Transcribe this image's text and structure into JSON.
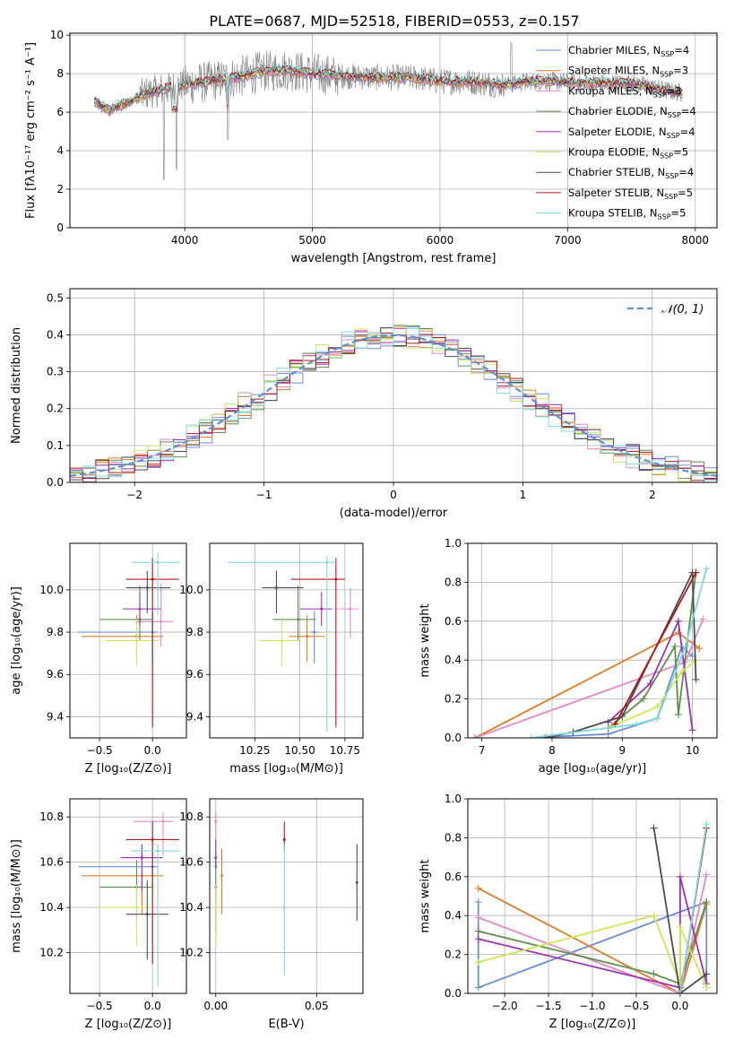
{
  "title": "PLATE=0687, MJD=52518, FIBERID=0553, z=0.157",
  "palette": {
    "chabrier_miles": "#6a8fd8",
    "salpeter_miles": "#e07b28",
    "kroupa_miles": "#e48ac4",
    "chabrier_elodie": "#5f8f4a",
    "salpeter_elodie": "#9b33b0",
    "kroupa_elodie": "#cde75a",
    "chabrier_stelib": "#4d4d4d",
    "salpeter_stelib": "#b01818",
    "kroupa_stelib": "#7fd8df",
    "data": "#808080",
    "normal": "#5b8fd6"
  },
  "legend_models": [
    {
      "name": "Chabrier MILES",
      "n": "4",
      "key": "chabrier_miles"
    },
    {
      "name": "Salpeter MILES",
      "n": "3",
      "key": "salpeter_miles"
    },
    {
      "name": "Kroupa MILES",
      "n": "3",
      "key": "kroupa_miles"
    },
    {
      "name": "Chabrier ELODIE",
      "n": "4",
      "key": "chabrier_elodie"
    },
    {
      "name": "Salpeter ELODIE",
      "n": "4",
      "key": "salpeter_elodie"
    },
    {
      "name": "Kroupa ELODIE",
      "n": "5",
      "key": "kroupa_elodie"
    },
    {
      "name": "Chabrier STELIB",
      "n": "4",
      "key": "chabrier_stelib"
    },
    {
      "name": "Salpeter STELIB",
      "n": "5",
      "key": "salpeter_stelib"
    },
    {
      "name": "Kroupa STELIB",
      "n": "5",
      "key": "kroupa_stelib"
    }
  ],
  "chart_data": [
    {
      "id": "spectrum",
      "type": "line",
      "xlabel": "wavelength [Angstrom, rest frame]",
      "ylabel": "Flux [fλ10⁻¹⁷ erg cm⁻² s⁻¹ A⁻¹]",
      "xlim": [
        3100,
        8170
      ],
      "ylim": [
        0,
        10.1
      ],
      "xticks": [
        "4000",
        "5000",
        "6000",
        "7000",
        "8000"
      ],
      "yticks": [
        "0",
        "2",
        "4",
        "6",
        "8",
        "10"
      ],
      "continuum": [
        [
          3290,
          6.6
        ],
        [
          3400,
          6.1
        ],
        [
          3550,
          6.5
        ],
        [
          3700,
          7.0
        ],
        [
          3850,
          7.2
        ],
        [
          4000,
          7.4
        ],
        [
          4200,
          7.6
        ],
        [
          4400,
          7.8
        ],
        [
          4600,
          8.1
        ],
        [
          4800,
          8.2
        ],
        [
          5000,
          8.0
        ],
        [
          5200,
          7.9
        ],
        [
          5500,
          7.8
        ],
        [
          5800,
          7.8
        ],
        [
          6000,
          7.6
        ],
        [
          6200,
          7.6
        ],
        [
          6500,
          7.4
        ],
        [
          6700,
          7.6
        ],
        [
          6900,
          7.6
        ],
        [
          7100,
          7.5
        ],
        [
          7300,
          7.5
        ],
        [
          7500,
          7.5
        ],
        [
          7650,
          7.3
        ],
        [
          7800,
          7.1
        ],
        [
          7900,
          7.0
        ]
      ]
    },
    {
      "id": "residuals",
      "type": "line",
      "xlabel": "(data-model)/error",
      "ylabel": "Normed distribution",
      "legend": "𝒩(0, 1)",
      "xlim": [
        -2.5,
        2.5
      ],
      "ylim": [
        0,
        0.525
      ],
      "xticks": [
        "−2",
        "−1",
        "0",
        "1",
        "2"
      ],
      "yticks": [
        "0.0",
        "0.1",
        "0.2",
        "0.3",
        "0.4",
        "0.5"
      ]
    },
    {
      "id": "age_vs_z",
      "type": "scatter",
      "xlabel": "Z [log₁₀(Z/Z⊙)]",
      "ylabel": "age  [log₁₀(age/yr)]",
      "xlim": [
        -0.78,
        0.32
      ],
      "ylim": [
        9.3,
        10.22
      ],
      "xticks": [
        "−0.5",
        "0.0"
      ],
      "yticks": [
        "9.4",
        "9.6",
        "9.8",
        "10.0"
      ],
      "points": [
        {
          "key": "chabrier_miles",
          "x": 0.0,
          "xerr": [
            0.7,
            0.05
          ],
          "y": 9.8,
          "yerr": [
            0.15,
            0.1
          ]
        },
        {
          "key": "salpeter_miles",
          "x": -0.15,
          "xerr": [
            0.52,
            0.25
          ],
          "y": 9.78,
          "yerr": [
            0.12,
            0.1
          ]
        },
        {
          "key": "kroupa_miles",
          "x": 0.08,
          "xerr": [
            0.24,
            0.12
          ],
          "y": 9.85,
          "yerr": [
            0.12,
            0.18
          ]
        },
        {
          "key": "chabrier_elodie",
          "x": -0.12,
          "xerr": [
            0.38,
            0.12
          ],
          "y": 9.86,
          "yerr": [
            0.1,
            0.16
          ]
        },
        {
          "key": "salpeter_elodie",
          "x": -0.12,
          "xerr": [
            0.16,
            0.2
          ],
          "y": 9.91,
          "yerr": [
            0.08,
            0.08
          ]
        },
        {
          "key": "kroupa_elodie",
          "x": -0.15,
          "xerr": [
            0.3,
            0.22
          ],
          "y": 9.76,
          "yerr": [
            0.12,
            0.1
          ]
        },
        {
          "key": "chabrier_stelib",
          "x": -0.05,
          "xerr": [
            0.2,
            0.22
          ],
          "y": 10.01,
          "yerr": [
            0.12,
            0.08
          ]
        },
        {
          "key": "salpeter_stelib",
          "x": 0.0,
          "xerr": [
            0.25,
            0.25
          ],
          "y": 10.05,
          "yerr": [
            0.7,
            0.1
          ]
        },
        {
          "key": "kroupa_stelib",
          "x": 0.05,
          "xerr": [
            0.25,
            0.2
          ],
          "y": 10.13,
          "yerr": [
            0.25,
            0.05
          ]
        }
      ]
    },
    {
      "id": "age_vs_mass",
      "type": "scatter",
      "xlabel": "mass [log₁₀(M/M⊙)]",
      "ylabel": "",
      "xlim": [
        10.0,
        10.85
      ],
      "ylim": [
        9.3,
        10.22
      ],
      "xticks": [
        "10.25",
        "10.50",
        "10.75"
      ],
      "yticks": [
        "9.4",
        "9.6",
        "9.8",
        "10.0"
      ],
      "points": [
        {
          "key": "chabrier_miles",
          "x": 10.58,
          "xerr": [
            0.02,
            0.02
          ],
          "y": 9.8,
          "yerr": [
            0.15,
            0.1
          ]
        },
        {
          "key": "salpeter_miles",
          "x": 10.54,
          "xerr": [
            0.1,
            0.1
          ],
          "y": 9.78,
          "yerr": [
            0.12,
            0.1
          ]
        },
        {
          "key": "kroupa_miles",
          "x": 10.78,
          "xerr": [
            0.08,
            0.05
          ],
          "y": 9.91,
          "yerr": [
            0.14,
            0.1
          ]
        },
        {
          "key": "chabrier_elodie",
          "x": 10.49,
          "xerr": [
            0.14,
            0.1
          ],
          "y": 9.86,
          "yerr": [
            0.1,
            0.16
          ]
        },
        {
          "key": "salpeter_elodie",
          "x": 10.62,
          "xerr": [
            0.12,
            0.06
          ],
          "y": 9.91,
          "yerr": [
            0.08,
            0.08
          ]
        },
        {
          "key": "kroupa_elodie",
          "x": 10.4,
          "xerr": [
            0.12,
            0.1
          ],
          "y": 9.76,
          "yerr": [
            0.12,
            0.1
          ]
        },
        {
          "key": "chabrier_stelib",
          "x": 10.37,
          "xerr": [
            0.08,
            0.15
          ],
          "y": 10.01,
          "yerr": [
            0.12,
            0.08
          ]
        },
        {
          "key": "salpeter_stelib",
          "x": 10.7,
          "xerr": [
            0.25,
            0.05
          ],
          "y": 10.05,
          "yerr": [
            0.7,
            0.1
          ]
        },
        {
          "key": "kroupa_stelib",
          "x": 10.65,
          "xerr": [
            0.55,
            0.05
          ],
          "y": 10.13,
          "yerr": [
            0.8,
            0.03
          ]
        }
      ]
    },
    {
      "id": "mass_weight_vs_age",
      "type": "line",
      "xlabel": "age  [log₁₀(age/yr)]",
      "ylabel": "mass weight",
      "xlim": [
        6.8,
        10.35
      ],
      "ylim": [
        0,
        1.0
      ],
      "xticks": [
        "7",
        "8",
        "9",
        "10"
      ],
      "yticks": [
        "0.0",
        "0.2",
        "0.4",
        "0.6",
        "0.8",
        "1.0"
      ],
      "series": [
        {
          "key": "chabrier_miles",
          "points": [
            [
              7.7,
              0.0
            ],
            [
              8.8,
              0.02
            ],
            [
              9.5,
              0.1
            ],
            [
              9.85,
              0.47
            ],
            [
              10.0,
              0.42
            ]
          ]
        },
        {
          "key": "salpeter_miles",
          "points": [
            [
              6.9,
              0.0
            ],
            [
              9.8,
              0.54
            ],
            [
              10.1,
              0.46
            ]
          ]
        },
        {
          "key": "kroupa_miles",
          "points": [
            [
              6.9,
              0.0
            ],
            [
              9.9,
              0.39
            ],
            [
              10.15,
              0.61
            ]
          ]
        },
        {
          "key": "chabrier_elodie",
          "points": [
            [
              8.8,
              0.05
            ],
            [
              9.3,
              0.2
            ],
            [
              9.75,
              0.47
            ],
            [
              9.8,
              0.12
            ],
            [
              10.05,
              0.85
            ]
          ]
        },
        {
          "key": "salpeter_elodie",
          "points": [
            [
              8.8,
              0.08
            ],
            [
              9.4,
              0.28
            ],
            [
              9.8,
              0.6
            ],
            [
              10.0,
              0.04
            ]
          ]
        },
        {
          "key": "kroupa_elodie",
          "points": [
            [
              8.85,
              0.06
            ],
            [
              9.5,
              0.16
            ],
            [
              9.85,
              0.34
            ],
            [
              10.05,
              0.4
            ]
          ]
        },
        {
          "key": "chabrier_stelib",
          "points": [
            [
              7.9,
              0.0
            ],
            [
              8.3,
              0.03
            ],
            [
              9.0,
              0.11
            ],
            [
              10.0,
              0.85
            ],
            [
              10.05,
              0.3
            ]
          ]
        },
        {
          "key": "salpeter_stelib",
          "points": [
            [
              8.9,
              0.07
            ],
            [
              10.05,
              0.85
            ]
          ]
        },
        {
          "key": "kroupa_stelib",
          "points": [
            [
              7.7,
              0.0
            ],
            [
              9.2,
              0.07
            ],
            [
              9.5,
              0.1
            ],
            [
              9.9,
              0.47
            ],
            [
              10.2,
              0.87
            ]
          ]
        }
      ]
    },
    {
      "id": "mass_vs_z",
      "type": "scatter",
      "xlabel": "Z [log₁₀(Z/Z⊙)]",
      "ylabel": "mass [log₁₀(M/M⊙)]",
      "xlim": [
        -0.78,
        0.32
      ],
      "ylim": [
        10.02,
        10.88
      ],
      "xticks": [
        "−0.5",
        "0.0"
      ],
      "yticks": [
        "10.2",
        "10.4",
        "10.6",
        "10.8"
      ],
      "points": [
        {
          "key": "chabrier_miles",
          "x": 0.0,
          "xerr": [
            0.7,
            0.05
          ],
          "y": 10.58,
          "yerr": [
            0.1,
            0.07
          ]
        },
        {
          "key": "salpeter_miles",
          "x": -0.1,
          "xerr": [
            0.57,
            0.2
          ],
          "y": 10.54,
          "yerr": [
            0.17,
            0.12
          ]
        },
        {
          "key": "kroupa_miles",
          "x": 0.1,
          "xerr": [
            0.28,
            0.1
          ],
          "y": 10.78,
          "yerr": [
            0.15,
            0.04
          ]
        },
        {
          "key": "chabrier_elodie",
          "x": -0.15,
          "xerr": [
            0.35,
            0.15
          ],
          "y": 10.49,
          "yerr": [
            0.2,
            0.12
          ]
        },
        {
          "key": "salpeter_elodie",
          "x": -0.1,
          "xerr": [
            0.2,
            0.2
          ],
          "y": 10.62,
          "yerr": [
            0.15,
            0.06
          ]
        },
        {
          "key": "kroupa_elodie",
          "x": -0.15,
          "xerr": [
            0.35,
            0.15
          ],
          "y": 10.4,
          "yerr": [
            0.17,
            0.1
          ]
        },
        {
          "key": "chabrier_stelib",
          "x": -0.05,
          "xerr": [
            0.2,
            0.2
          ],
          "y": 10.37,
          "yerr": [
            0.2,
            0.15
          ]
        },
        {
          "key": "salpeter_stelib",
          "x": 0.0,
          "xerr": [
            0.25,
            0.25
          ],
          "y": 10.7,
          "yerr": [
            0.55,
            0.08
          ]
        },
        {
          "key": "kroupa_stelib",
          "x": 0.05,
          "xerr": [
            0.25,
            0.2
          ],
          "y": 10.65,
          "yerr": [
            0.6,
            0.03
          ]
        }
      ]
    },
    {
      "id": "mass_vs_ebv",
      "type": "scatter",
      "xlabel": "E(B-V)",
      "ylabel": "",
      "xlim": [
        -0.003,
        0.073
      ],
      "ylim": [
        10.02,
        10.88
      ],
      "xticks": [
        "0.00",
        "0.05"
      ],
      "yticks": [
        "10.2",
        "10.4",
        "10.6",
        "10.8"
      ],
      "points": [
        {
          "key": "chabrier_miles",
          "x": 0.0,
          "y": 10.58,
          "yerr": [
            0.02,
            0.03
          ]
        },
        {
          "key": "salpeter_miles",
          "x": 0.003,
          "y": 10.54,
          "yerr": [
            0.17,
            0.12
          ]
        },
        {
          "key": "kroupa_miles",
          "x": 0.0,
          "y": 10.78,
          "yerr": [
            0.15,
            0.04
          ]
        },
        {
          "key": "chabrier_elodie",
          "x": 0.0,
          "y": 10.49,
          "yerr": [
            0.2,
            0.12
          ]
        },
        {
          "key": "salpeter_elodie",
          "x": 0.0,
          "y": 10.62,
          "yerr": [
            0.04,
            0.08
          ]
        },
        {
          "key": "kroupa_elodie",
          "x": 0.0,
          "y": 10.4,
          "yerr": [
            0.17,
            0.1
          ]
        },
        {
          "key": "chabrier_stelib",
          "x": 0.07,
          "y": 10.51,
          "yerr": [
            0.17,
            0.17
          ]
        },
        {
          "key": "salpeter_stelib",
          "x": 0.034,
          "y": 10.7,
          "yerr": [
            0.05,
            0.08
          ]
        },
        {
          "key": "kroupa_stelib",
          "x": 0.034,
          "y": 10.4,
          "yerr": [
            0.3,
            0.28
          ]
        }
      ]
    },
    {
      "id": "mass_weight_vs_z",
      "type": "line",
      "xlabel": "Z [log₁₀(Z/Z⊙)]",
      "ylabel": "mass weight",
      "xlim": [
        -2.42,
        0.42
      ],
      "ylim": [
        0,
        1.0
      ],
      "xticks": [
        "−2.0",
        "−1.5",
        "−1.0",
        "−0.5",
        "0.0"
      ],
      "yticks": [
        "0.0",
        "0.2",
        "0.4",
        "0.6",
        "0.8",
        "1.0"
      ],
      "series": [
        {
          "key": "chabrier_miles",
          "points": [
            [
              -2.3,
              0.47
            ],
            [
              -2.3,
              0.03
            ],
            [
              0.3,
              0.47
            ],
            [
              0.3,
              0.03
            ]
          ]
        },
        {
          "key": "salpeter_miles",
          "points": [
            [
              -2.3,
              0.54
            ],
            [
              0.0,
              0.0
            ],
            [
              0.3,
              0.46
            ]
          ]
        },
        {
          "key": "kroupa_miles",
          "points": [
            [
              -2.3,
              0.39
            ],
            [
              0.0,
              0.0
            ],
            [
              0.3,
              0.61
            ]
          ]
        },
        {
          "key": "chabrier_elodie",
          "points": [
            [
              -2.3,
              0.32
            ],
            [
              -0.3,
              0.1
            ],
            [
              0.0,
              0.05
            ],
            [
              0.3,
              0.47
            ]
          ]
        },
        {
          "key": "salpeter_elodie",
          "points": [
            [
              -2.3,
              0.28
            ],
            [
              0.0,
              0.03
            ],
            [
              0.0,
              0.6
            ],
            [
              0.3,
              0.05
            ]
          ]
        },
        {
          "key": "kroupa_elodie",
          "points": [
            [
              -2.3,
              0.16
            ],
            [
              -0.3,
              0.4
            ],
            [
              0.0,
              0.05
            ],
            [
              0.0,
              0.34
            ],
            [
              0.3,
              0.03
            ]
          ]
        },
        {
          "key": "chabrier_stelib",
          "points": [
            [
              -0.3,
              0.85
            ],
            [
              0.0,
              0.0
            ],
            [
              0.3,
              0.1
            ]
          ]
        },
        {
          "key": "salpeter_stelib",
          "points": [
            [
              0.0,
              0.0
            ],
            [
              0.3,
              0.85
            ]
          ]
        },
        {
          "key": "kroupa_stelib",
          "points": [
            [
              0.0,
              0.0
            ],
            [
              0.3,
              0.87
            ]
          ]
        }
      ]
    }
  ]
}
